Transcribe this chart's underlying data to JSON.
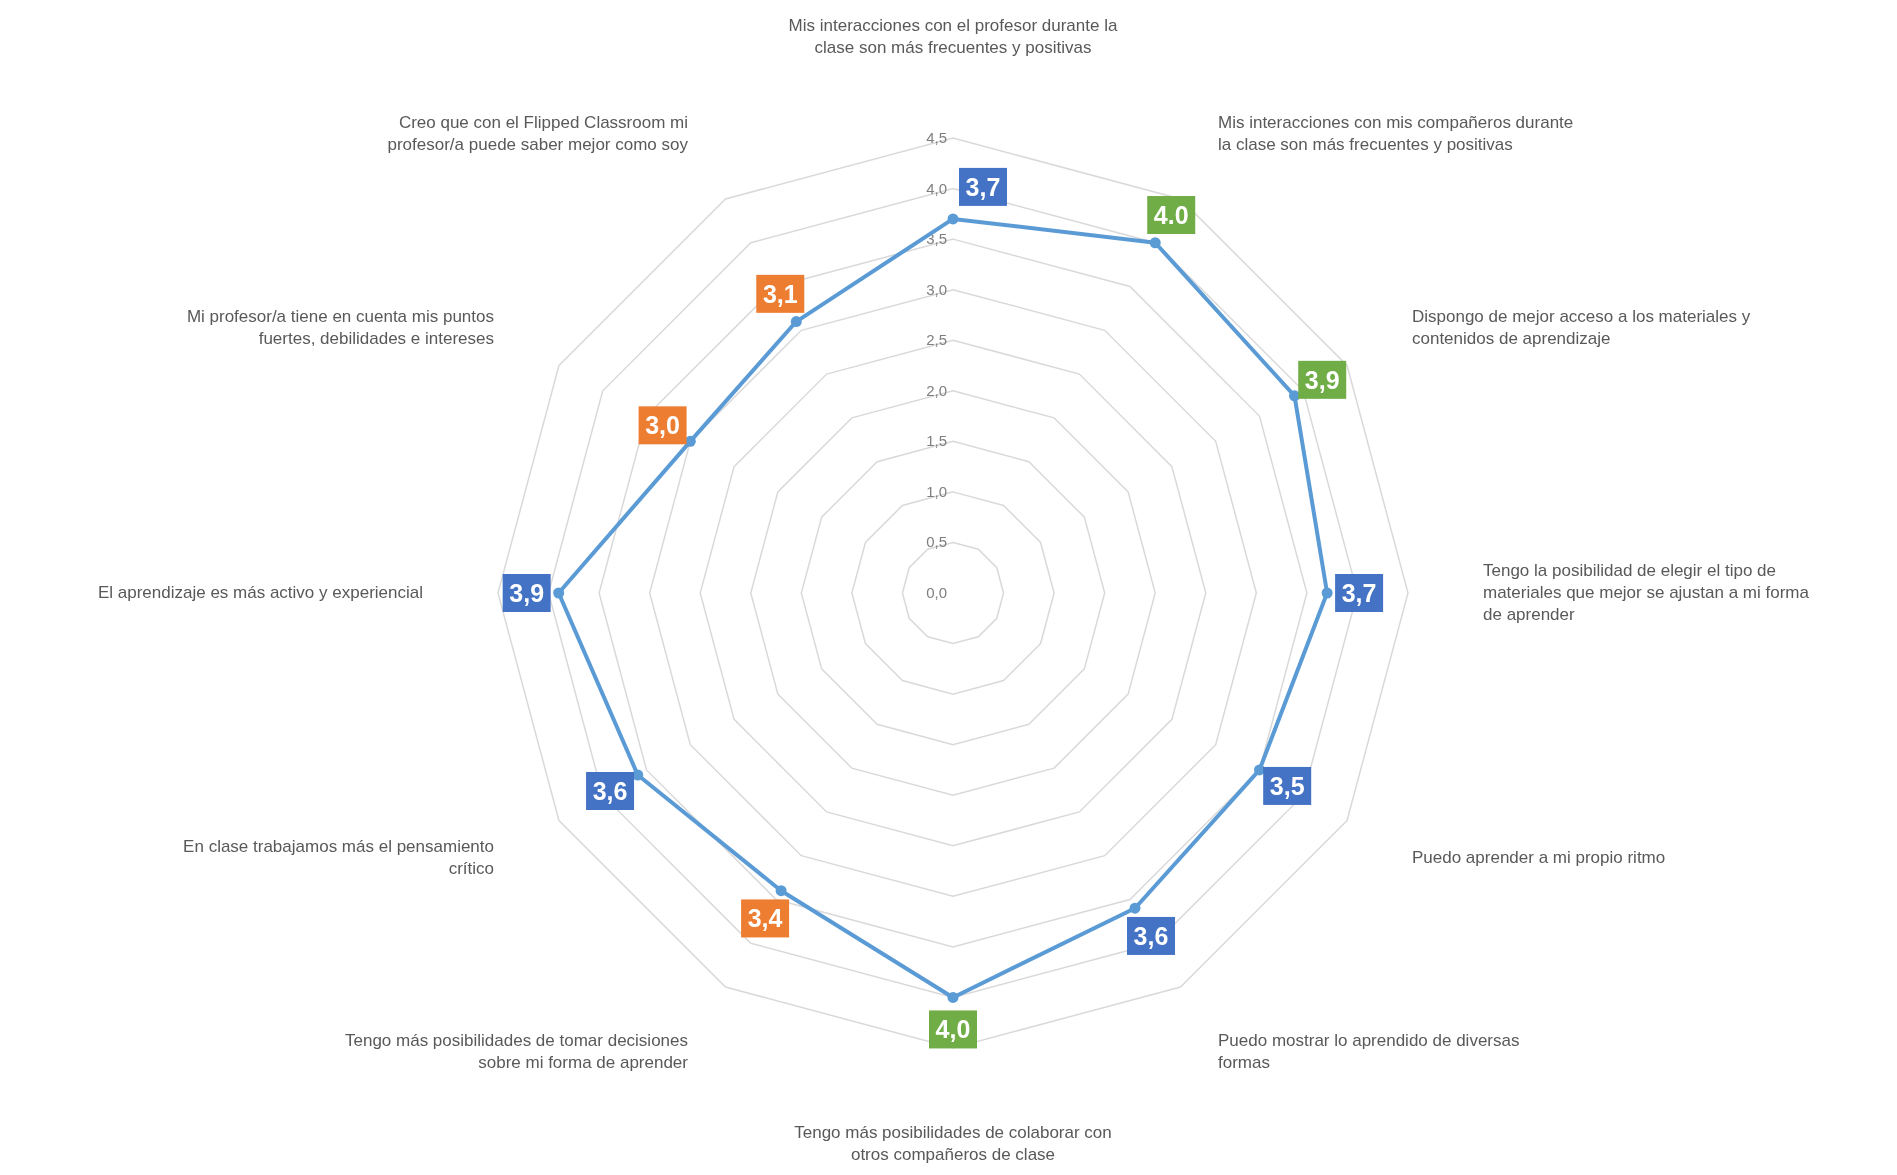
{
  "chart_data": {
    "type": "radar",
    "categories": [
      "Mis interacciones con el profesor durante la clase son más frecuentes y positivas",
      "Mis interacciones con mis compañeros durante la clase son más frecuentes y positivas",
      "Dispongo de mejor acceso a los materiales y contenidos de aprendizaje",
      "Tengo la posibilidad de elegir el tipo de materiales que mejor se ajustan a mi forma de aprender",
      "Puedo aprender a mi propio ritmo",
      "Puedo mostrar lo aprendido de diversas formas",
      "Tengo más posibilidades de colaborar con otros compañeros de clase",
      "Tengo más posibilidades de tomar decisiones sobre mi forma de aprender",
      "En clase trabajamos más el pensamiento crítico",
      "El aprendizaje es más activo y experiencial",
      "Mi profesor/a tiene en cuenta mis puntos fuertes, debilidades e intereses",
      "Creo que con el Flipped Classroom mi profesor/a puede saber mejor como soy"
    ],
    "series": [
      {
        "color": "#5b9bd5",
        "values": [
          3.7,
          4.0,
          3.9,
          3.7,
          3.5,
          3.6,
          4.0,
          3.4,
          3.6,
          3.9,
          3.0,
          3.1
        ],
        "value_labels": [
          "3,7",
          "4.0",
          "3,9",
          "3,7",
          "3,5",
          "3,6",
          "4,0",
          "3,4",
          "3,6",
          "3,9",
          "3,0",
          "3,1"
        ],
        "colors": [
          "#4472c4",
          "#70ad47",
          "#70ad47",
          "#4472c4",
          "#4472c4",
          "#4472c4",
          "#70ad47",
          "#ed7d31",
          "#4472c4",
          "#4472c4",
          "#ed7d31",
          "#ed7d31"
        ]
      }
    ],
    "ylim": [
      0,
      4.5
    ],
    "yticks": [
      {
        "value": 0,
        "label": "0,0"
      },
      {
        "value": 0.5,
        "label": "0,5"
      },
      {
        "value": 1,
        "label": "1,0"
      },
      {
        "value": 1.5,
        "label": "1,5"
      },
      {
        "value": 2,
        "label": "2,0"
      },
      {
        "value": 2.5,
        "label": "2,5"
      },
      {
        "value": 3,
        "label": "3,0"
      },
      {
        "value": 3.5,
        "label": "3,5"
      },
      {
        "value": 4,
        "label": "4,0"
      },
      {
        "value": 4.5,
        "label": "4,5"
      }
    ],
    "grid": true,
    "marker": "circle",
    "line_style": "solid"
  }
}
